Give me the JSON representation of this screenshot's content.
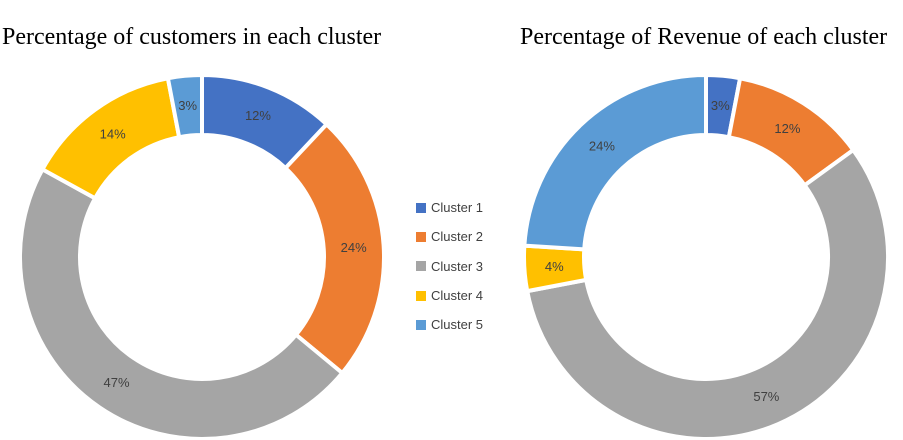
{
  "colors": {
    "Cluster 1": "#4472C4",
    "Cluster 2": "#ED7D31",
    "Cluster 3": "#A5A5A5",
    "Cluster 4": "#FFC000",
    "Cluster 5": "#5B9BD5"
  },
  "chart_data": [
    {
      "type": "pie",
      "style": "donut",
      "title": "Percentage of customers in each cluster",
      "categories": [
        "Cluster 1",
        "Cluster 2",
        "Cluster 3",
        "Cluster 4",
        "Cluster 5"
      ],
      "values": [
        12,
        24,
        47,
        14,
        3
      ],
      "labels": [
        "12%",
        "24%",
        "47%",
        "14%",
        "3%"
      ]
    },
    {
      "type": "pie",
      "style": "donut",
      "title": "Percentage of Revenue of each cluster",
      "categories": [
        "Cluster 1",
        "Cluster 2",
        "Cluster 3",
        "Cluster 4",
        "Cluster 5"
      ],
      "values": [
        3,
        12,
        57,
        4,
        24
      ],
      "labels": [
        "3%",
        "12%",
        "57%",
        "4%",
        "24%"
      ]
    }
  ],
  "legend": {
    "placement": "center",
    "items": [
      "Cluster 1",
      "Cluster 2",
      "Cluster 3",
      "Cluster 4",
      "Cluster 5"
    ]
  }
}
